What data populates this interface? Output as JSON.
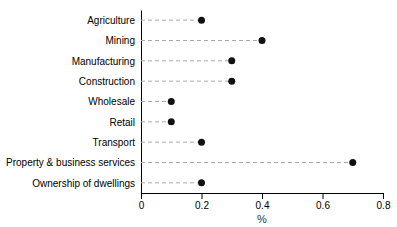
{
  "chart_data": {
    "type": "lollipop",
    "orientation": "horizontal",
    "categories": [
      "Agriculture",
      "Mining",
      "Manufacturing",
      "Construction",
      "Wholesale",
      "Retail",
      "Transport",
      "Property & business services",
      "Ownership of dwellings"
    ],
    "values": [
      0.2,
      0.4,
      0.3,
      0.3,
      0.1,
      0.1,
      0.2,
      0.7,
      0.2
    ],
    "xlim": [
      0,
      0.8
    ],
    "xticks": [
      0,
      0.2,
      0.4,
      0.6,
      0.8
    ],
    "xlabel": "%",
    "color": "#111111",
    "marker": "circle",
    "line_style": "dashed",
    "grid": false
  }
}
